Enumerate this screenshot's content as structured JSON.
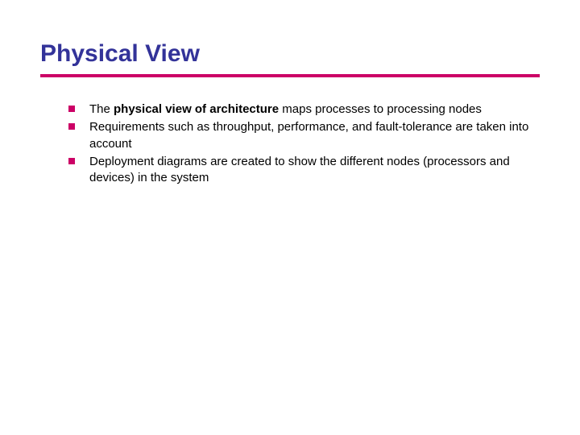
{
  "slide": {
    "title": "Physical View",
    "title_color": "#333399",
    "title_fontsize": 30,
    "underline_color": "#cc0066",
    "underline_height": 4,
    "bullet_color": "#cc0066",
    "bullet_size": 8,
    "body_fontsize": 15,
    "body_color": "#000000",
    "background_color": "#ffffff",
    "bullets": [
      {
        "prefix": "The ",
        "bold": "physical view of architecture",
        "suffix": " maps processes to processing nodes"
      },
      {
        "prefix": "",
        "bold": "",
        "suffix": "Requirements such as throughput, performance, and fault-tolerance are taken into account"
      },
      {
        "prefix": "",
        "bold": "",
        "suffix": "Deployment diagrams are created to show the different nodes (processors and devices) in the system"
      }
    ]
  }
}
